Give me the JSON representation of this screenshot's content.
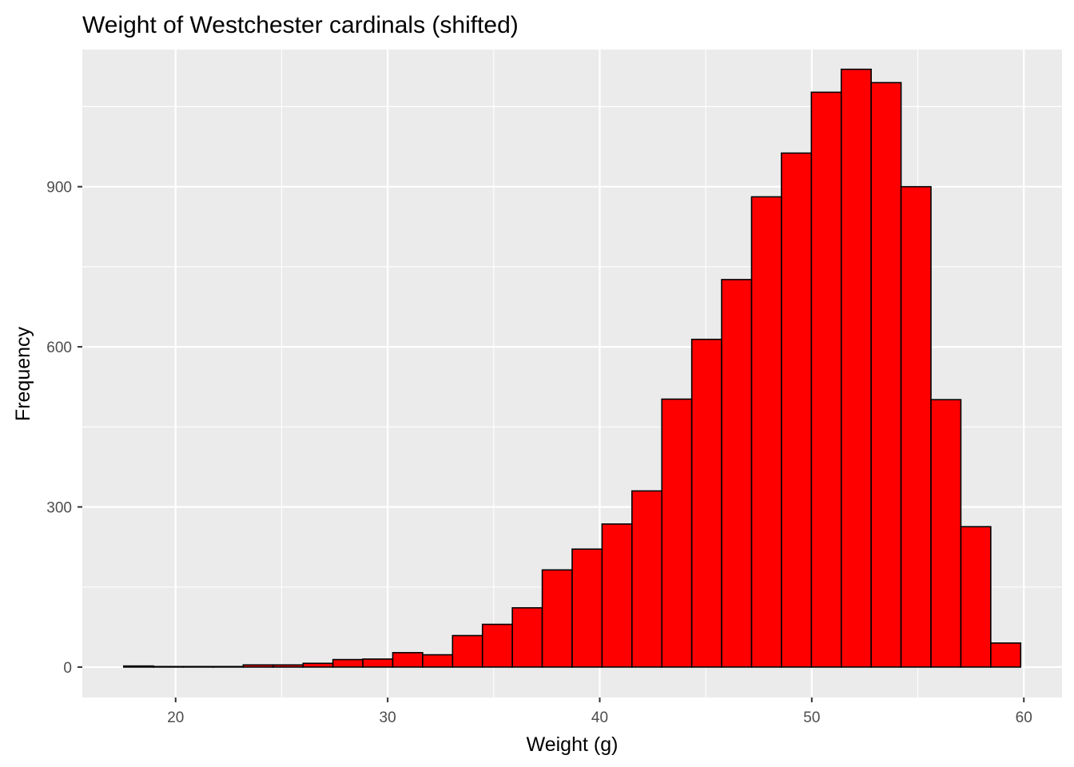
{
  "chart_data": {
    "type": "bar",
    "title": "Weight of Westchester cardinals (shifted)",
    "xlabel": "Weight (g)",
    "ylabel": "Frequency",
    "xlim": [
      15.6,
      61.8
    ],
    "ylim": [
      -57,
      1157
    ],
    "x_ticks": [
      20,
      30,
      40,
      50,
      60
    ],
    "y_ticks": [
      0,
      300,
      600,
      900
    ],
    "x_tick_labels": [
      "20",
      "30",
      "40",
      "50",
      "60"
    ],
    "y_tick_labels": [
      "0",
      "300",
      "600",
      "900"
    ],
    "bin_width": 1.41,
    "bin_start": 17.55,
    "values": [
      2,
      1,
      1,
      1,
      4,
      4,
      7,
      14,
      15,
      27,
      23,
      59,
      80,
      111,
      182,
      221,
      268,
      330,
      502,
      614,
      726,
      881,
      963,
      1077,
      1120,
      1095,
      900,
      501,
      263,
      45
    ],
    "bar_fill": "#ff0000",
    "bar_stroke": "#000000",
    "panel_background": "#ebebeb",
    "grid": true,
    "grid_color": "#ffffff",
    "legend": "none"
  }
}
